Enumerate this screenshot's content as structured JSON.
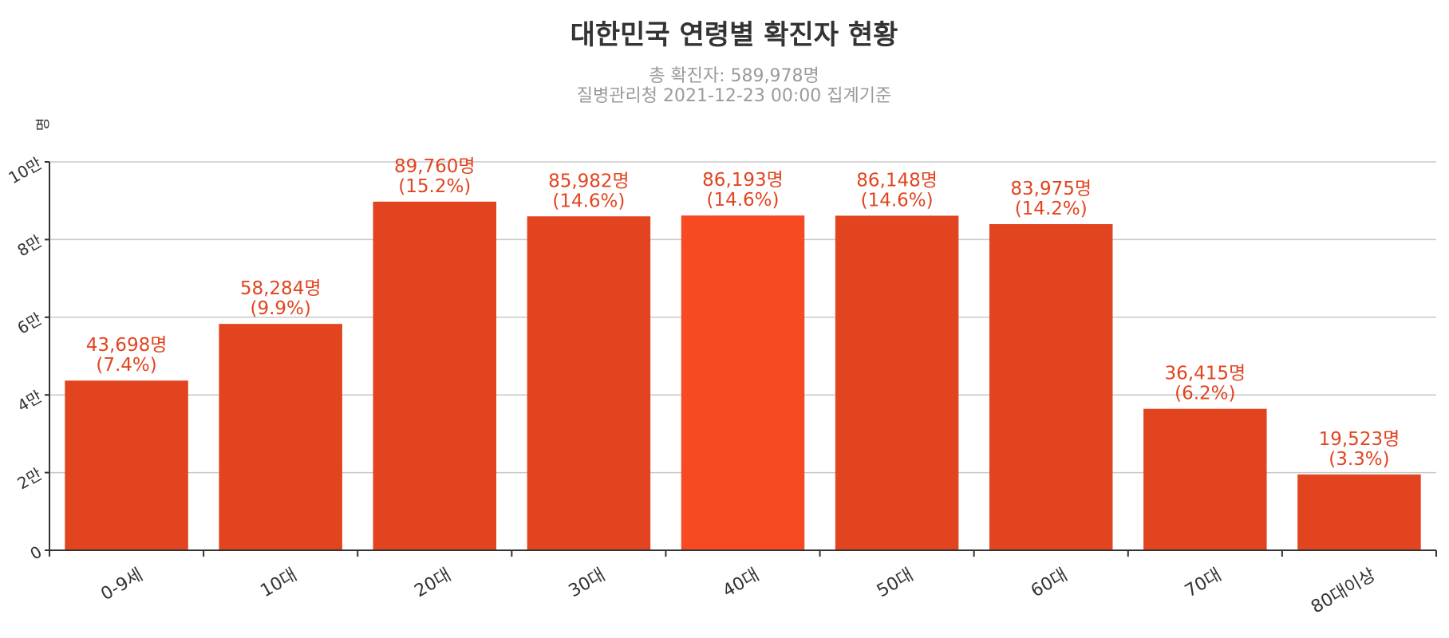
{
  "chart_data": {
    "type": "bar",
    "title": "대한민국 연령별 확진자 현황",
    "subtitle_lines": [
      "총 확진자: 589,978명",
      "질병관리청 2021-12-23 00:00 집계기준"
    ],
    "ylabel": "명",
    "categories": [
      "0-9세",
      "10대",
      "20대",
      "30대",
      "40대",
      "50대",
      "60대",
      "70대",
      "80대이상"
    ],
    "values": [
      43698,
      58284,
      89760,
      85982,
      86193,
      86148,
      83975,
      36415,
      19523
    ],
    "value_labels": [
      "43,698명",
      "58,284명",
      "89,760명",
      "85,982명",
      "86,193명",
      "86,148명",
      "83,975명",
      "36,415명",
      "19,523명"
    ],
    "percent_labels": [
      "(7.4%)",
      "(9.9%)",
      "(15.2%)",
      "(14.6%)",
      "(14.6%)",
      "(14.6%)",
      "(14.2%)",
      "(6.2%)",
      "(3.3%)"
    ],
    "ylim": [
      0,
      100000
    ],
    "yticks": [
      0,
      20000,
      40000,
      60000,
      80000,
      100000
    ],
    "ytick_labels": [
      "0",
      "2만",
      "4만",
      "6만",
      "8만",
      "10만"
    ],
    "grid": true,
    "colors": {
      "bar": "#e2441f",
      "bar_highlight": "#f74a23",
      "label": "#e2441f"
    },
    "highlight_index": 4
  }
}
